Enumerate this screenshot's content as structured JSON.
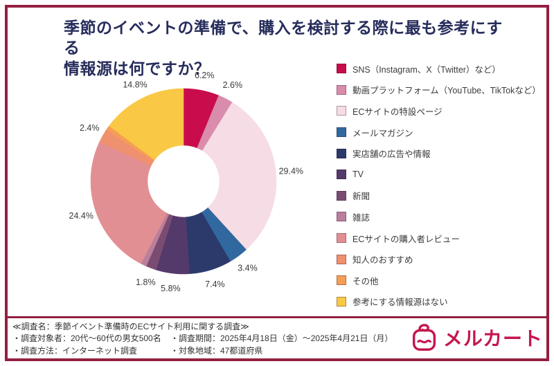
{
  "colors": {
    "frame": "#942040",
    "title": "#262c5b",
    "label": "#3a3a3a",
    "footer_text": "#333333",
    "logo": "#c5164d",
    "legend_text": "#3b3b3b",
    "background": "#ffffff"
  },
  "title": {
    "lines": [
      "季節のイベントの準備で、購入を検討する際に最も参考にする",
      "情報源は何ですか？"
    ]
  },
  "chart_data": {
    "type": "pie",
    "subtype": "donut",
    "start_angle": "top",
    "direction": "clockwise",
    "legend_position": "right",
    "label_format": "percent-outside",
    "series": [
      {
        "label": "SNS（Instagram、X（Twitter）など）",
        "value": 6.2,
        "color": "#c90d4c",
        "show_label": true
      },
      {
        "label": "動画プラットフォーム（YouTube、TikTokなど）",
        "value": 2.6,
        "color": "#d98cab",
        "show_label": true
      },
      {
        "label": "ECサイトの特設ページ",
        "value": 29.4,
        "color": "#f6dce4",
        "show_label": true
      },
      {
        "label": "メールマガジン",
        "value": 3.4,
        "color": "#31689f",
        "show_label": true
      },
      {
        "label": "実店舗の広告や情報",
        "value": 7.4,
        "color": "#2b3a6b",
        "show_label": true
      },
      {
        "label": "TV",
        "value": 5.8,
        "color": "#543a6b",
        "show_label": true
      },
      {
        "label": "新聞",
        "value": 1.8,
        "color": "#7b4c72",
        "show_label": true
      },
      {
        "label": "雑誌",
        "value": 1.0,
        "color": "#bb7f9d",
        "show_label": false
      },
      {
        "label": "ECサイトの購入者レビュー",
        "value": 24.4,
        "color": "#e28f94",
        "show_label": true
      },
      {
        "label": "知人のおすすめ",
        "value": 2.4,
        "color": "#ef906e",
        "show_label": true
      },
      {
        "label": "その他",
        "value": 0.8,
        "color": "#f59e55",
        "show_label": false
      },
      {
        "label": "参考にする情報源はない",
        "value": 14.8,
        "color": "#f9c845",
        "show_label": true
      }
    ]
  },
  "footer": {
    "survey_name": "≪調査名：季節イベント準備時のECサイト利用に関する調査≫",
    "rows": [
      {
        "left": "・調査対象者：20代～60代の男女500名",
        "right": "・調査期間：2025年4月18日（金）～2025年4月21日（月）"
      },
      {
        "left": "・調査方法：インターネット調査",
        "right": "・対象地域：47都道府県"
      }
    ],
    "logo_text": "メルカート"
  }
}
